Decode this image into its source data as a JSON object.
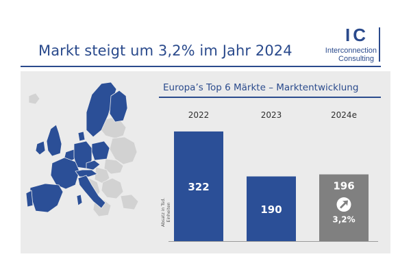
{
  "header": {
    "title": "Markt steigt um 3,2% im Jahr 2024",
    "logo_mark": "IC",
    "logo_line1": "Interconnection",
    "logo_line2": "Consulting"
  },
  "map": {
    "highlight_color": "#2b4f97",
    "other_color": "#d2d2d2",
    "icon": "europe-map-icon"
  },
  "colors": {
    "primary": "#2a4a8c",
    "bar_blue": "#2b4f97",
    "bar_forecast": "#808080",
    "panel_bg": "#ebebeb"
  },
  "chart_data": {
    "type": "bar",
    "title": "Europa’s Top 6 Märkte – Marktentwicklung",
    "categories": [
      "2022",
      "2023",
      "2024e"
    ],
    "values": [
      322,
      190,
      196
    ],
    "value_labels": [
      "322",
      "190",
      "196"
    ],
    "bar_colors": [
      "#2b4f97",
      "#2b4f97",
      "#808080"
    ],
    "ylabel": "Absatz in Tsd. Einheiten",
    "ylim": [
      0,
      350
    ],
    "grid": false,
    "annotation": {
      "category": "2024e",
      "text": "3,2%",
      "icon": "growth-arrow-icon"
    }
  }
}
